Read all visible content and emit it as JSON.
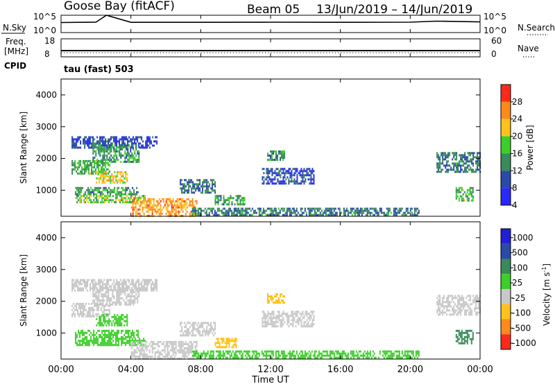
{
  "header": {
    "station": "Goose Bay (fitACF)",
    "beam": "Beam 05",
    "date_range": "13/Jun/2019 – 14/Jun/2019"
  },
  "side_labels": {
    "n_sky": "N.Sky",
    "n_search": "N.Search",
    "freq_line1": "Freq.",
    "freq_line2": "[MHz]",
    "nave": "Nave",
    "cpid": "CPID"
  },
  "mode_label": "tau (fast) 503",
  "axes": {
    "noise_ticks_left": [
      "10^5",
      "10^0"
    ],
    "noise_ticks_right": [
      "10^5",
      "10^0"
    ],
    "freq_ticks": [
      "18",
      "8"
    ],
    "nave_ticks": [
      "60",
      "0"
    ],
    "range_ticks": [
      "4000",
      "3000",
      "2000",
      "1000"
    ],
    "time_ticks": [
      "00:00",
      "04:00",
      "08:00",
      "12:00",
      "16:00",
      "20:00",
      "00:00"
    ],
    "xlabel": "Time UT",
    "ylabel": "Slant Range [km]"
  },
  "colorbars": {
    "power": {
      "label": "Power [dB]",
      "ticks": [
        "28",
        "24",
        "20",
        "16",
        "12",
        "8",
        "4"
      ],
      "colors": [
        "#ff2a1a",
        "#ff8a1a",
        "#ffc21a",
        "#3ccf2a",
        "#3a8a5a",
        "#2a4aa8",
        "#2828ff"
      ]
    },
    "velocity": {
      "label": "Velocity [m s",
      "label_sup": "-1",
      "label_end": "]",
      "ticks": [
        "1000",
        "500",
        "100",
        "25",
        "-25",
        "-100",
        "-500",
        "-1000"
      ],
      "colors": [
        "#2020d8",
        "#2a4aa8",
        "#3a8a5a",
        "#3ccf2a",
        "#c8c8c8",
        "#ffc21a",
        "#ff8a1a",
        "#ff2a1a"
      ]
    }
  },
  "chart_data": [
    {
      "type": "line",
      "title": "N.Sky / N.Search",
      "x": [
        0,
        2,
        2.6,
        4,
        8,
        12,
        16,
        20,
        21.5,
        24
      ],
      "y": [
        800,
        1000,
        100000,
        900,
        900,
        1000,
        900,
        1000,
        2000,
        1200
      ],
      "ylim": [
        1,
        100000
      ],
      "yscale": "log"
    },
    {
      "type": "line",
      "title": "Freq. [MHz]",
      "x": [
        0,
        24
      ],
      "y": [
        10.5,
        10.5
      ],
      "ylim": [
        8,
        18
      ]
    },
    {
      "type": "heatmap",
      "title": "Power [dB]",
      "xlabel": "Time UT",
      "ylabel": "Slant Range [km]",
      "xlim": [
        0,
        24
      ],
      "ylim": [
        180,
        4500
      ],
      "clim": [
        0,
        32
      ],
      "regions": [
        {
          "t0": 0.6,
          "t1": 5.5,
          "r0": 2350,
          "r1": 2700,
          "v": 6
        },
        {
          "t0": 1.8,
          "t1": 4.5,
          "r0": 1900,
          "r1": 2450,
          "v": 12
        },
        {
          "t0": 0.6,
          "t1": 2.8,
          "r0": 1500,
          "r1": 1950,
          "v": 14
        },
        {
          "t0": 2.0,
          "t1": 3.8,
          "r0": 1250,
          "r1": 1600,
          "v": 20
        },
        {
          "t0": 0.8,
          "t1": 4.4,
          "r0": 900,
          "r1": 1100,
          "v": 13
        },
        {
          "t0": 0.8,
          "t1": 4.8,
          "r0": 650,
          "r1": 850,
          "v": 16
        },
        {
          "t0": 4.0,
          "t1": 7.8,
          "r0": 200,
          "r1": 750,
          "v": 24
        },
        {
          "t0": 6.8,
          "t1": 8.8,
          "r0": 950,
          "r1": 1350,
          "v": 9
        },
        {
          "t0": 8.8,
          "t1": 10.5,
          "r0": 550,
          "r1": 850,
          "v": 13
        },
        {
          "t0": 7.5,
          "t1": 20.5,
          "r0": 200,
          "r1": 450,
          "v": 10
        },
        {
          "t0": 11.5,
          "t1": 14.5,
          "r0": 1200,
          "r1": 1700,
          "v": 6
        },
        {
          "t0": 11.8,
          "t1": 12.8,
          "r0": 1950,
          "r1": 2250,
          "v": 12
        },
        {
          "t0": 21.5,
          "t1": 24.0,
          "r0": 1550,
          "r1": 2200,
          "v": 10
        },
        {
          "t0": 22.6,
          "t1": 23.6,
          "r0": 700,
          "r1": 1100,
          "v": 14
        }
      ]
    },
    {
      "type": "heatmap",
      "title": "Velocity [m s-1]",
      "xlabel": "Time UT",
      "ylabel": "Slant Range [km]",
      "xlim": [
        0,
        24
      ],
      "ylim": [
        180,
        4500
      ],
      "regions": [
        {
          "t0": 0.6,
          "t1": 5.5,
          "r0": 2350,
          "r1": 2700,
          "v": 0
        },
        {
          "t0": 1.8,
          "t1": 4.5,
          "r0": 1900,
          "r1": 2450,
          "v": 0
        },
        {
          "t0": 0.6,
          "t1": 2.8,
          "r0": 1500,
          "r1": 1950,
          "v": 0
        },
        {
          "t0": 2.0,
          "t1": 3.8,
          "r0": 1250,
          "r1": 1600,
          "v": 60
        },
        {
          "t0": 0.8,
          "t1": 4.4,
          "r0": 900,
          "r1": 1100,
          "v": 60
        },
        {
          "t0": 0.8,
          "t1": 4.8,
          "r0": 650,
          "r1": 850,
          "v": 60
        },
        {
          "t0": 4.0,
          "t1": 7.8,
          "r0": 200,
          "r1": 750,
          "v": 0
        },
        {
          "t0": 6.8,
          "t1": 8.8,
          "r0": 950,
          "r1": 1350,
          "v": 0
        },
        {
          "t0": 8.8,
          "t1": 10.0,
          "r0": 550,
          "r1": 850,
          "v": -80
        },
        {
          "t0": 7.5,
          "t1": 20.5,
          "r0": 200,
          "r1": 450,
          "v": 60
        },
        {
          "t0": 11.5,
          "t1": 14.5,
          "r0": 1200,
          "r1": 1700,
          "v": 0
        },
        {
          "t0": 11.8,
          "t1": 12.8,
          "r0": 1950,
          "r1": 2250,
          "v": -80
        },
        {
          "t0": 21.5,
          "t1": 24.0,
          "r0": 1550,
          "r1": 2200,
          "v": 0
        },
        {
          "t0": 22.6,
          "t1": 23.6,
          "r0": 700,
          "r1": 1100,
          "v": 200
        }
      ]
    }
  ]
}
